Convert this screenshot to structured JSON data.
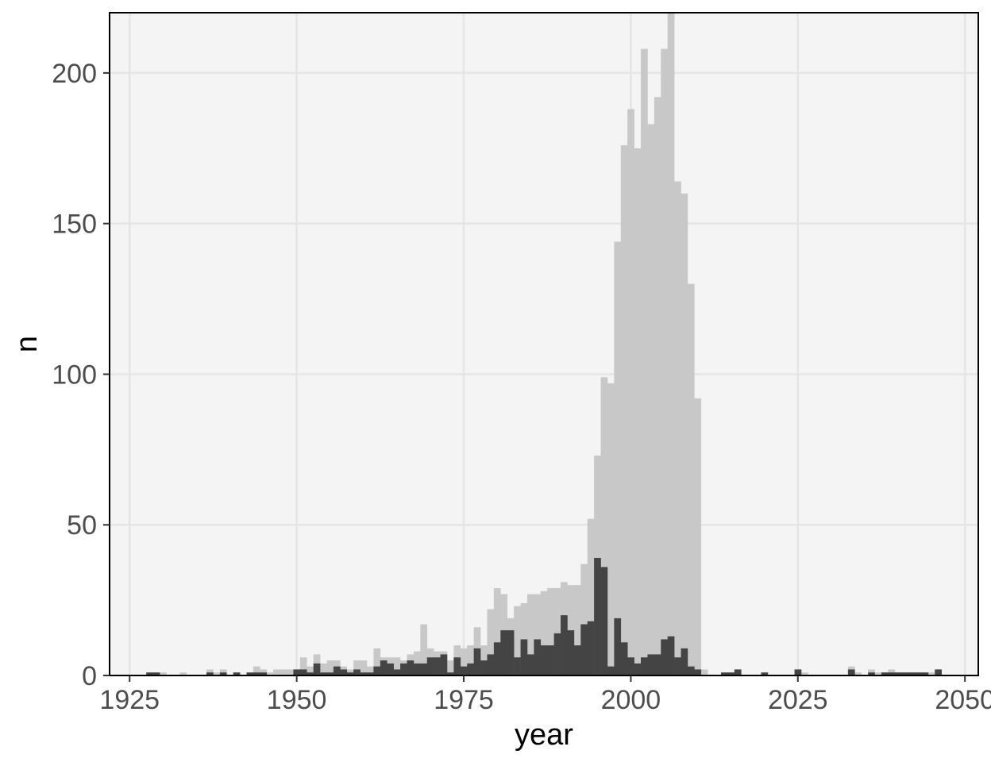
{
  "chart_data": {
    "type": "bar",
    "subtype": "overlaid-histogram",
    "xlabel": "year",
    "ylabel": "n",
    "xlim": [
      1922,
      2052
    ],
    "ylim": [
      0,
      220
    ],
    "x_ticks": [
      1925,
      1950,
      1975,
      2000,
      2025,
      2050
    ],
    "x_tick_labels": [
      "1925",
      "1950",
      "1975",
      "2000",
      "2025",
      "2050"
    ],
    "y_ticks": [
      0,
      50,
      100,
      150,
      200
    ],
    "y_tick_labels": [
      "0",
      "50",
      "100",
      "150",
      "200"
    ],
    "grid": true,
    "legend": "none",
    "colors": {
      "panel_background": "#f4f4f4",
      "grid": "#e5e5e5",
      "series_1": "#c8c8c8",
      "series_2": "#444444",
      "tick_text": "#4d4d4d",
      "axis_title": "#000000"
    },
    "x": [
      1928,
      1929,
      1930,
      1931,
      1932,
      1933,
      1934,
      1935,
      1936,
      1937,
      1938,
      1939,
      1940,
      1941,
      1942,
      1943,
      1944,
      1945,
      1946,
      1947,
      1948,
      1949,
      1950,
      1951,
      1952,
      1953,
      1954,
      1955,
      1956,
      1957,
      1958,
      1959,
      1960,
      1961,
      1962,
      1963,
      1964,
      1965,
      1966,
      1967,
      1968,
      1969,
      1970,
      1971,
      1972,
      1973,
      1974,
      1975,
      1976,
      1977,
      1978,
      1979,
      1980,
      1981,
      1982,
      1983,
      1984,
      1985,
      1986,
      1987,
      1988,
      1989,
      1990,
      1991,
      1992,
      1993,
      1994,
      1995,
      1996,
      1997,
      1998,
      1999,
      2000,
      2001,
      2002,
      2003,
      2004,
      2005,
      2006,
      2007,
      2008,
      2009,
      2010,
      2011,
      2012,
      2013,
      2014,
      2015,
      2016,
      2017,
      2018,
      2019,
      2020,
      2021,
      2022,
      2023,
      2024,
      2025,
      2026,
      2027,
      2028,
      2029,
      2030,
      2031,
      2032,
      2033,
      2034,
      2035,
      2036,
      2037,
      2038,
      2039,
      2040,
      2041,
      2042,
      2043,
      2044,
      2045,
      2046
    ],
    "series": [
      {
        "values": [
          1,
          1,
          1,
          0,
          0,
          1,
          0,
          0,
          0,
          2,
          1,
          2,
          0,
          1,
          0,
          1,
          3,
          2,
          1,
          2,
          2,
          2,
          2,
          6,
          3,
          7,
          4,
          5,
          5,
          3,
          2,
          5,
          5,
          3,
          9,
          6,
          6,
          6,
          5,
          7,
          8,
          17,
          9,
          8,
          8,
          5,
          10,
          9,
          10,
          16,
          10,
          22,
          29,
          27,
          19,
          23,
          24,
          27,
          27,
          28,
          29,
          29,
          31,
          30,
          30,
          37,
          52,
          73,
          99,
          97,
          144,
          176,
          188,
          175,
          208,
          183,
          192,
          208,
          220,
          164,
          160,
          130,
          92,
          2,
          0,
          0,
          1,
          1,
          2,
          0,
          0,
          0,
          1,
          0,
          0,
          0,
          0,
          2,
          1,
          0,
          0,
          0,
          0,
          0,
          0,
          3,
          1,
          0,
          2,
          1,
          1,
          2,
          1,
          1,
          1,
          1,
          1,
          1,
          2
        ]
      },
      {
        "values": [
          1,
          1,
          0,
          0,
          0,
          0,
          0,
          0,
          0,
          1,
          0,
          1,
          0,
          1,
          0,
          1,
          1,
          1,
          0,
          0,
          0,
          0,
          2,
          2,
          1,
          4,
          1,
          1,
          3,
          2,
          1,
          2,
          1,
          1,
          3,
          5,
          4,
          2,
          4,
          5,
          4,
          4,
          6,
          6,
          7,
          1,
          6,
          3,
          4,
          9,
          5,
          7,
          11,
          15,
          15,
          6,
          12,
          7,
          12,
          10,
          10,
          14,
          20,
          15,
          10,
          17,
          18,
          39,
          36,
          3,
          19,
          11,
          6,
          4,
          6,
          7,
          7,
          12,
          13,
          6,
          9,
          3,
          2,
          0,
          0,
          0,
          1,
          1,
          2,
          0,
          0,
          0,
          1,
          0,
          0,
          0,
          0,
          2,
          0,
          0,
          0,
          0,
          0,
          0,
          0,
          2,
          0,
          0,
          1,
          0,
          1,
          1,
          1,
          1,
          1,
          1,
          1,
          0,
          2
        ]
      }
    ]
  }
}
